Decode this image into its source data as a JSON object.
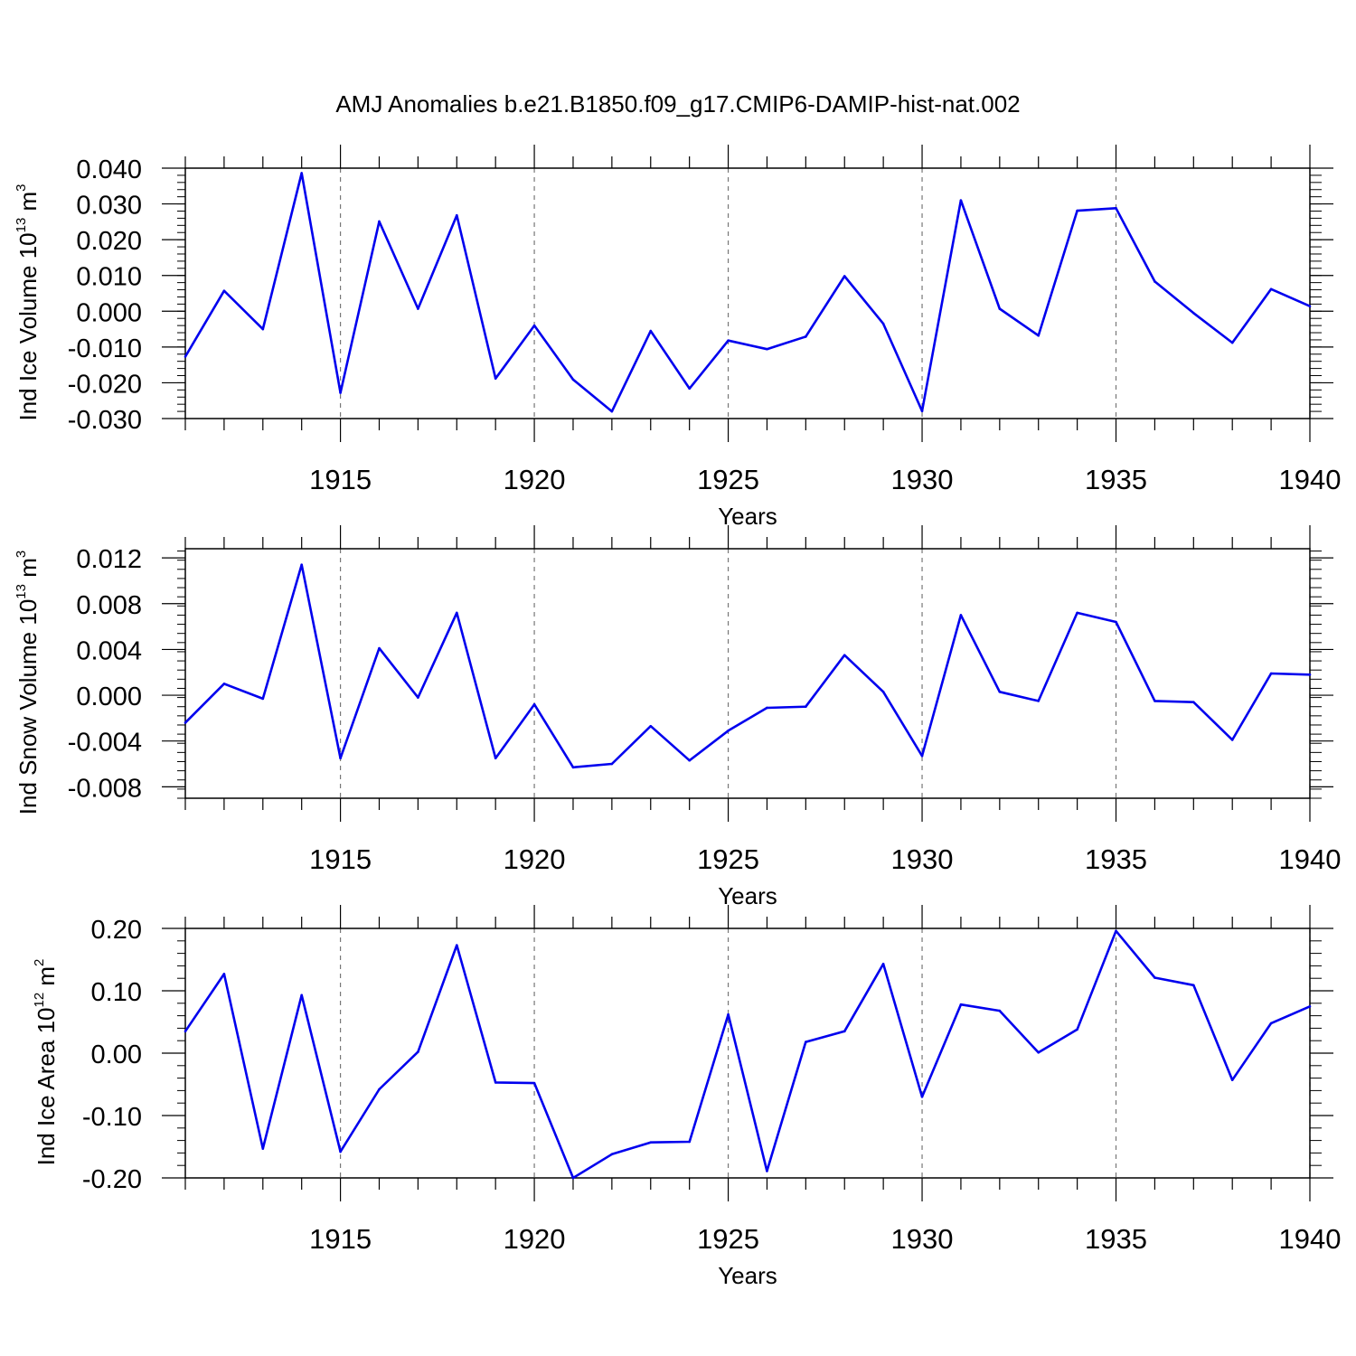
{
  "title": "AMJ Anomalies b.e21.B1850.f09_g17.CMIP6-DAMIP-hist-nat.002",
  "colors": {
    "line": "#0000ee",
    "axis": "#000000",
    "grid": "#777777"
  },
  "chart_data": [
    {
      "type": "line",
      "ylabel": {
        "main": "Ind Ice Volume 10",
        "exponent": "13",
        "unit": " m",
        "unit_exponent": "3"
      },
      "xlabel": "Years",
      "xlim": [
        1911,
        1940
      ],
      "ylim": [
        -0.03,
        0.04
      ],
      "x_ticks": [
        1915,
        1920,
        1925,
        1930,
        1935,
        1940
      ],
      "y_ticks": [
        "0.040",
        "0.030",
        "0.020",
        "0.010",
        "0.000",
        "-0.010",
        "-0.020",
        "-0.030"
      ],
      "y_tick_values": [
        0.04,
        0.03,
        0.02,
        0.01,
        0.0,
        -0.01,
        -0.02,
        -0.03
      ],
      "x": [
        1911,
        1912,
        1913,
        1914,
        1915,
        1916,
        1917,
        1918,
        1919,
        1920,
        1921,
        1922,
        1923,
        1924,
        1925,
        1926,
        1927,
        1928,
        1929,
        1930,
        1931,
        1932,
        1933,
        1934,
        1935,
        1936,
        1937,
        1938,
        1939,
        1940
      ],
      "values": [
        -0.0127,
        0.0057,
        -0.005,
        0.0386,
        -0.0228,
        0.0251,
        0.0007,
        0.0268,
        -0.0188,
        -0.004,
        -0.0191,
        -0.028,
        -0.0055,
        -0.0216,
        -0.0082,
        -0.0106,
        -0.0071,
        0.0098,
        -0.0035,
        -0.0279,
        0.031,
        0.0007,
        -0.0068,
        0.0281,
        0.0288,
        0.0083,
        -0.0005,
        -0.0088,
        0.0062,
        0.0014
      ]
    },
    {
      "type": "line",
      "ylabel": {
        "main": "Ind Snow Volume 10",
        "exponent": "13",
        "unit": " m",
        "unit_exponent": "3"
      },
      "xlabel": "Years",
      "xlim": [
        1911,
        1940
      ],
      "ylim": [
        -0.009,
        0.0128
      ],
      "x_ticks": [
        1915,
        1920,
        1925,
        1930,
        1935,
        1940
      ],
      "y_ticks": [
        "0.012",
        "0.008",
        "0.004",
        "0.000",
        "-0.004",
        "-0.008"
      ],
      "y_tick_values": [
        0.012,
        0.008,
        0.004,
        0.0,
        -0.004,
        -0.008
      ],
      "x": [
        1911,
        1912,
        1913,
        1914,
        1915,
        1916,
        1917,
        1918,
        1919,
        1920,
        1921,
        1922,
        1923,
        1924,
        1925,
        1926,
        1927,
        1928,
        1929,
        1930,
        1931,
        1932,
        1933,
        1934,
        1935,
        1936,
        1937,
        1938,
        1939,
        1940
      ],
      "values": [
        -0.0024,
        0.001,
        -0.0003,
        0.0114,
        -0.0055,
        0.0041,
        -0.0002,
        0.0072,
        -0.0055,
        -0.0008,
        -0.0063,
        -0.006,
        -0.0027,
        -0.0057,
        -0.0031,
        -0.0011,
        -0.001,
        0.0035,
        0.0003,
        -0.0053,
        0.007,
        0.0003,
        -0.0005,
        0.0072,
        0.0064,
        -0.0005,
        -0.0006,
        -0.0039,
        0.0019,
        0.0018
      ]
    },
    {
      "type": "line",
      "ylabel": {
        "main": "Ind Ice Area 10",
        "exponent": "12",
        "unit": " m",
        "unit_exponent": "2"
      },
      "xlabel": "Years",
      "xlim": [
        1911,
        1940
      ],
      "ylim": [
        -0.2,
        0.2
      ],
      "x_ticks": [
        1915,
        1920,
        1925,
        1930,
        1935,
        1940
      ],
      "y_ticks": [
        "0.20",
        "0.10",
        "0.00",
        "-0.10",
        "-0.20"
      ],
      "y_tick_values": [
        0.2,
        0.1,
        0.0,
        -0.1,
        -0.2
      ],
      "x": [
        1911,
        1912,
        1913,
        1914,
        1915,
        1916,
        1917,
        1918,
        1919,
        1920,
        1921,
        1922,
        1923,
        1924,
        1925,
        1926,
        1927,
        1928,
        1929,
        1930,
        1931,
        1932,
        1933,
        1934,
        1935,
        1936,
        1937,
        1938,
        1939,
        1940
      ],
      "values": [
        0.035,
        0.127,
        -0.153,
        0.093,
        -0.158,
        -0.058,
        0.002,
        0.173,
        -0.047,
        -0.048,
        -0.2,
        -0.162,
        -0.143,
        -0.142,
        0.062,
        -0.189,
        0.018,
        0.035,
        0.143,
        -0.07,
        0.078,
        0.068,
        0.001,
        0.038,
        0.196,
        0.121,
        0.109,
        -0.043,
        0.048,
        0.075
      ]
    }
  ]
}
